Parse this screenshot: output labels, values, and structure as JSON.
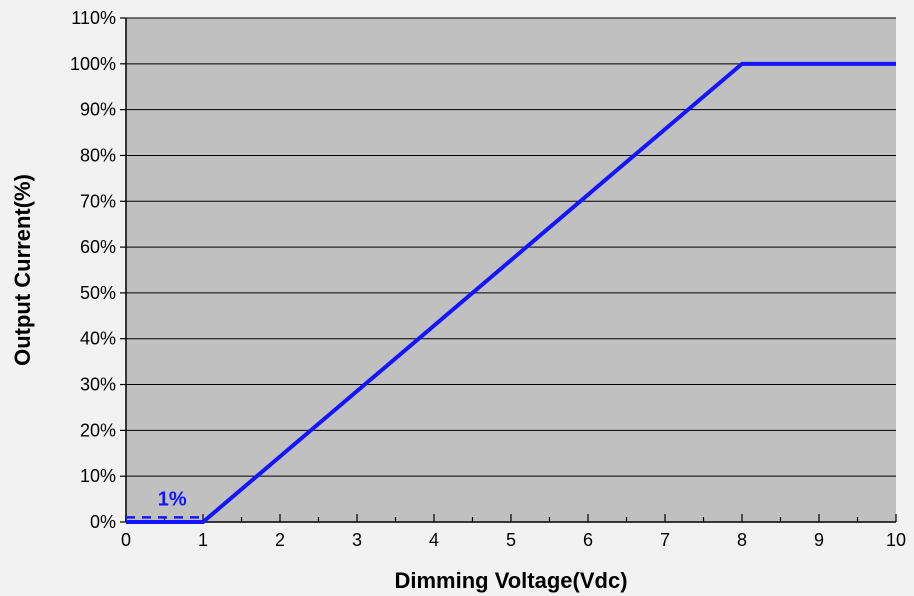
{
  "chart_data": {
    "type": "line",
    "xlabel": "Dimming Voltage(Vdc)",
    "ylabel": "Output Current(%)",
    "xlim": [
      0,
      10
    ],
    "ylim": [
      0,
      110
    ],
    "x_ticks": [
      0,
      1,
      2,
      3,
      4,
      5,
      6,
      7,
      8,
      9,
      10
    ],
    "x_tick_labels": [
      "0",
      "1",
      "2",
      "3",
      "4",
      "5",
      "6",
      "7",
      "8",
      "9",
      "10"
    ],
    "y_ticks": [
      0,
      10,
      20,
      30,
      40,
      50,
      60,
      70,
      80,
      90,
      100,
      110
    ],
    "y_tick_labels": [
      "0%",
      "10%",
      "20%",
      "30%",
      "40%",
      "50%",
      "60%",
      "70%",
      "80%",
      "90%",
      "100%",
      "110%"
    ],
    "grid": "horizontal",
    "series": [
      {
        "x": [
          0,
          1,
          8,
          10
        ],
        "y": [
          0,
          0,
          100,
          100
        ],
        "style": "solid",
        "color": "#1414ff"
      },
      {
        "x": [
          0,
          1
        ],
        "y": [
          1,
          1
        ],
        "style": "dashed",
        "color": "#1414ff"
      }
    ],
    "annotations": [
      {
        "text": "1%",
        "x": 0.6,
        "y": 1,
        "color": "#1414ff"
      }
    ],
    "colors": {
      "plot_background": "#c0c0c0",
      "page_background": "#f2f2f2",
      "grid": "#000000",
      "line": "#1414ff"
    }
  }
}
